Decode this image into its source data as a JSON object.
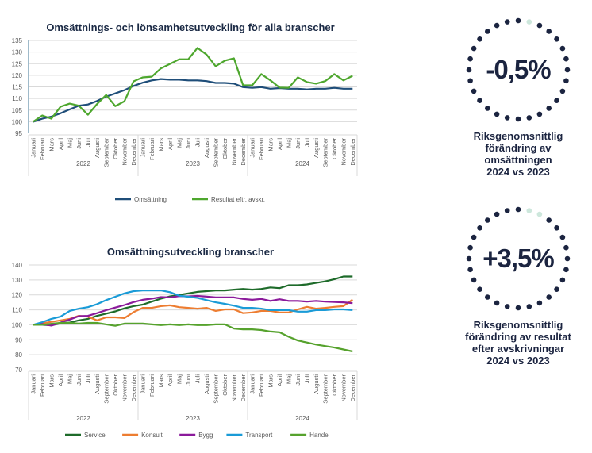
{
  "colors": {
    "navy": "#1b2440",
    "dot_light": "#cde7dc",
    "grid": "#d9d9d9",
    "axis_text": "#595959"
  },
  "chart_data": [
    {
      "type": "line",
      "title": "Omsättnings- och lönsamhetsutveckling för alla branscher",
      "xlabel": "",
      "ylabel": "",
      "ylim": [
        95,
        135
      ],
      "yticks": [
        95,
        100,
        105,
        110,
        115,
        120,
        125,
        130,
        135
      ],
      "grid": true,
      "legend": "bottom",
      "years": [
        "2022",
        "2023",
        "2024"
      ],
      "months": [
        "Januari",
        "Februari",
        "Mars",
        "April",
        "Maj",
        "Juni",
        "Juli",
        "Augusti",
        "September",
        "Oktober",
        "November",
        "December"
      ],
      "series": [
        {
          "name": "Omsättning",
          "color": "#1f4e79",
          "values": [
            100,
            101.3,
            102.2,
            103.6,
            105.3,
            106.9,
            107.4,
            108.9,
            110.8,
            112.2,
            113.6,
            115.4,
            116.8,
            117.8,
            118.4,
            118.1,
            118.1,
            117.8,
            117.8,
            117.5,
            116.7,
            116.7,
            116.4,
            114.9,
            114.6,
            114.9,
            114.2,
            114.5,
            114.2,
            114.2,
            113.9,
            114.2,
            114.2,
            114.6,
            114.2,
            114.2
          ]
        },
        {
          "name": "Resultat eftr. avskr.",
          "color": "#4ea72e",
          "values": [
            100,
            102.7,
            101.3,
            106.5,
            107.8,
            106.9,
            103,
            107.6,
            111.5,
            106.7,
            108.8,
            117.4,
            119.1,
            119.4,
            123,
            124.9,
            126.9,
            126.9,
            131.8,
            128.9,
            123.9,
            126.3,
            127.3,
            115.7,
            115.7,
            120.5,
            117.8,
            114.7,
            114.6,
            119.1,
            117.1,
            116.4,
            117.5,
            120.5,
            117.8,
            119.8
          ]
        }
      ]
    },
    {
      "type": "line",
      "title": "Omsättningsutveckling branscher",
      "xlabel": "",
      "ylabel": "",
      "ylim": [
        70,
        140
      ],
      "yticks": [
        70,
        80,
        90,
        100,
        110,
        120,
        130,
        140
      ],
      "grid": true,
      "legend": "bottom",
      "years": [
        "2022",
        "2023",
        "2024"
      ],
      "months": [
        "Januari",
        "Februari",
        "Mars",
        "April",
        "Maj",
        "Juni",
        "Juli",
        "Augusti",
        "September",
        "Oktober",
        "November",
        "December"
      ],
      "series": [
        {
          "name": "Service",
          "color": "#1e6b2a",
          "values": [
            100,
            100,
            99.7,
            101,
            101.5,
            103,
            104,
            106,
            107.5,
            109,
            111,
            112.5,
            113.5,
            115.5,
            117.5,
            119,
            120,
            121,
            122,
            122.5,
            123,
            123,
            123.5,
            124,
            123.5,
            124,
            125,
            124.5,
            126.5,
            126.5,
            127,
            128,
            129,
            130.5,
            132.3,
            132.3
          ]
        },
        {
          "name": "Konsult",
          "color": "#ed7d31",
          "values": [
            100,
            101,
            102,
            103,
            104,
            106,
            105.5,
            103,
            105,
            105,
            104.5,
            108.5,
            111.3,
            111.3,
            112.5,
            113,
            111.8,
            111.3,
            110.8,
            111.3,
            109.3,
            110.3,
            110.3,
            107.8,
            108.3,
            109.3,
            109.3,
            108.3,
            108.3,
            110.3,
            112,
            110.8,
            111.3,
            112,
            112.5,
            116.8
          ]
        },
        {
          "name": "Bygg",
          "color": "#8b1a9b",
          "values": [
            100,
            100.5,
            99.5,
            101.5,
            103.5,
            105.8,
            106,
            107.8,
            109.8,
            111.5,
            113.2,
            115.2,
            116.7,
            117.5,
            118.5,
            118.3,
            119.2,
            119,
            119.3,
            118.9,
            118.3,
            118.3,
            118.3,
            117.3,
            116.7,
            117.3,
            116,
            117.1,
            116,
            116,
            115.5,
            116,
            115.5,
            115.3,
            115,
            114.5
          ]
        },
        {
          "name": "Transport",
          "color": "#1a9bd7",
          "values": [
            100,
            101.8,
            104,
            105.5,
            109.3,
            110.8,
            111.8,
            113.8,
            116.5,
            118.8,
            121,
            122.5,
            123,
            123,
            123,
            121.8,
            119.5,
            118.8,
            118,
            116.5,
            115,
            114,
            112.8,
            111.3,
            111.3,
            110.8,
            109.8,
            109.8,
            109.8,
            108.8,
            108.8,
            109.8,
            109.8,
            110.3,
            110.3,
            109.8
          ]
        },
        {
          "name": "Handel",
          "color": "#56a22d",
          "values": [
            100,
            100,
            100.7,
            101.3,
            101.3,
            100.8,
            101.3,
            101.3,
            100.3,
            99.3,
            100.8,
            100.8,
            100.8,
            100.3,
            99.8,
            100.3,
            99.8,
            100.3,
            99.8,
            99.8,
            100.3,
            100.3,
            97.5,
            97,
            97,
            96.5,
            95.5,
            95,
            92,
            89.5,
            88.2,
            86.8,
            85.8,
            84.8,
            83.5,
            82.2
          ]
        }
      ]
    }
  ],
  "stats": [
    {
      "value": "-0,5%",
      "caption": "Riksgenomsnittlig\nförändring av\nomsättningen\n2024 vs 2023",
      "light_dots": 1
    },
    {
      "value": "+3,5%",
      "caption": "Riksgenomsnittlig\nförändring av resultat\nefter avskrivningar\n2024 vs 2023",
      "light_dots": 2
    }
  ]
}
